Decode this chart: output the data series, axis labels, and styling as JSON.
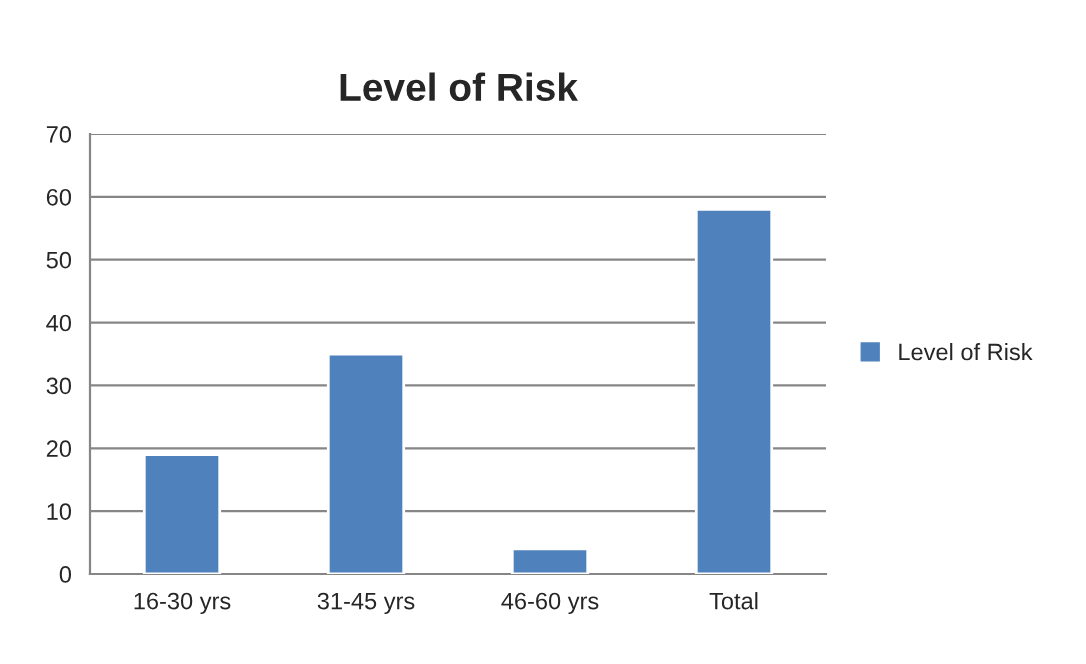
{
  "chart_data": {
    "type": "bar",
    "title": "Level of Risk",
    "categories": [
      "16-30 yrs",
      "31-45 yrs",
      "46-60 yrs",
      "Total"
    ],
    "series": [
      {
        "name": "Level of Risk",
        "color": "#4f81bd",
        "values": [
          19,
          35,
          4,
          58
        ]
      }
    ],
    "ylim": [
      0,
      70
    ],
    "yticks": [
      0,
      10,
      20,
      30,
      40,
      50,
      60,
      70
    ],
    "grid": "y",
    "legend": "right"
  }
}
